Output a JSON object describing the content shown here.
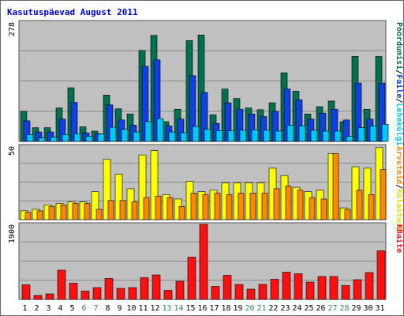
{
  "title": "Kasutuspäevad August 2011",
  "colors": {
    "hits": "#007050",
    "files": "#1040e0",
    "pages": "#00c8ff",
    "visits": "#ffff00",
    "sites": "#ff8800",
    "kbytes": "#ff1010",
    "panel_bg": "#c0c0c0",
    "grid": "#888888",
    "weekend_label": "#2e8b57",
    "weekday_label": "#000000",
    "title": "#0000cc"
  },
  "chart_data": [
    {
      "type": "bar",
      "name": "panel-top",
      "ymax_label": "278",
      "ylim": [
        0,
        278
      ],
      "right_labels": [
        {
          "text": "Pöördumisi",
          "color": "#007050"
        },
        {
          "text": "/",
          "color": "#000000"
        },
        {
          "text": "Faile",
          "color": "#1040e0"
        },
        {
          "text": "/",
          "color": "#000000"
        },
        {
          "text": "Lehekülgi",
          "color": "#00c8ff"
        }
      ],
      "categories": [
        "1",
        "2",
        "3",
        "4",
        "5",
        "6",
        "7",
        "8",
        "9",
        "10",
        "11",
        "12",
        "13",
        "14",
        "15",
        "16",
        "17",
        "18",
        "19",
        "20",
        "21",
        "22",
        "23",
        "24",
        "25",
        "26",
        "27",
        "28",
        "29",
        "30",
        "31"
      ],
      "series": [
        {
          "key": "hits",
          "values": [
            70,
            32,
            32,
            78,
            125,
            34,
            24,
            108,
            76,
            64,
            212,
            247,
            46,
            75,
            235,
            248,
            62,
            122,
            100,
            78,
            74,
            90,
            160,
            117,
            64,
            81,
            94,
            46,
            198,
            75,
            198
          ]
        },
        {
          "key": "files",
          "values": [
            48,
            22,
            22,
            52,
            91,
            20,
            18,
            85,
            50,
            38,
            175,
            190,
            36,
            52,
            153,
            114,
            42,
            90,
            75,
            64,
            58,
            70,
            122,
            97,
            52,
            66,
            75,
            50,
            136,
            52,
            136
          ]
        },
        {
          "key": "pages",
          "values": [
            16,
            8,
            10,
            16,
            18,
            12,
            17,
            33,
            28,
            22,
            46,
            53,
            22,
            20,
            35,
            28,
            25,
            25,
            26,
            27,
            26,
            24,
            38,
            36,
            26,
            24,
            24,
            12,
            32,
            36,
            40
          ]
        }
      ]
    },
    {
      "type": "bar",
      "name": "panel-middle",
      "ymax_label": "50",
      "ylim": [
        0,
        50
      ],
      "right_labels": [
        {
          "text": "Arvuteid",
          "color": "#ff8800"
        },
        {
          "text": "/",
          "color": "#000000"
        },
        {
          "text": "Külastusi",
          "color": "#dddd00"
        }
      ],
      "categories": [
        "1",
        "2",
        "3",
        "4",
        "5",
        "6",
        "7",
        "8",
        "9",
        "10",
        "11",
        "12",
        "13",
        "14",
        "15",
        "16",
        "17",
        "18",
        "19",
        "20",
        "21",
        "22",
        "23",
        "24",
        "25",
        "26",
        "27",
        "28",
        "29",
        "30",
        "31"
      ],
      "series": [
        {
          "key": "visits",
          "values": [
            6,
            7,
            10,
            11,
            12,
            12,
            19,
            41,
            31,
            21,
            44,
            47,
            17,
            14,
            26,
            19,
            20,
            25,
            25,
            25,
            25,
            35,
            30,
            22,
            19,
            20,
            45,
            8,
            36,
            35,
            49
          ]
        },
        {
          "key": "sites",
          "values": [
            5,
            6,
            9,
            10,
            11,
            11,
            7,
            13,
            13,
            12,
            15,
            16,
            15,
            9,
            18,
            17,
            18,
            17,
            18,
            18,
            18,
            21,
            23,
            20,
            15,
            14,
            45,
            7,
            20,
            17,
            34
          ]
        }
      ]
    },
    {
      "type": "bar",
      "name": "panel-bottom",
      "ymax_label": "1900",
      "ylim": [
        0,
        1900
      ],
      "right_labels": [
        {
          "text": "KBaite",
          "color": "#ff1010"
        }
      ],
      "categories": [
        "1",
        "2",
        "3",
        "4",
        "5",
        "6",
        "7",
        "8",
        "9",
        "10",
        "11",
        "12",
        "13",
        "14",
        "15",
        "16",
        "17",
        "18",
        "19",
        "20",
        "21",
        "22",
        "23",
        "24",
        "25",
        "26",
        "27",
        "28",
        "29",
        "30",
        "31"
      ],
      "series": [
        {
          "key": "kbytes",
          "values": [
            370,
            100,
            140,
            740,
            410,
            210,
            300,
            530,
            280,
            300,
            550,
            620,
            230,
            460,
            1070,
            1900,
            330,
            610,
            380,
            260,
            380,
            510,
            690,
            650,
            440,
            580,
            580,
            350,
            500,
            680,
            1230
          ]
        }
      ]
    }
  ],
  "x_labels": [
    {
      "text": "1",
      "weekend": false
    },
    {
      "text": "2",
      "weekend": false
    },
    {
      "text": "3",
      "weekend": false
    },
    {
      "text": "4",
      "weekend": false
    },
    {
      "text": "5",
      "weekend": false
    },
    {
      "text": "6",
      "weekend": true
    },
    {
      "text": "7",
      "weekend": true
    },
    {
      "text": "8",
      "weekend": false
    },
    {
      "text": "9",
      "weekend": false
    },
    {
      "text": "10",
      "weekend": false
    },
    {
      "text": "11",
      "weekend": false
    },
    {
      "text": "12",
      "weekend": false
    },
    {
      "text": "13",
      "weekend": true
    },
    {
      "text": "14",
      "weekend": true
    },
    {
      "text": "15",
      "weekend": false
    },
    {
      "text": "16",
      "weekend": false
    },
    {
      "text": "17",
      "weekend": false
    },
    {
      "text": "18",
      "weekend": false
    },
    {
      "text": "19",
      "weekend": false
    },
    {
      "text": "20",
      "weekend": true
    },
    {
      "text": "21",
      "weekend": true
    },
    {
      "text": "22",
      "weekend": false
    },
    {
      "text": "23",
      "weekend": false
    },
    {
      "text": "24",
      "weekend": false
    },
    {
      "text": "25",
      "weekend": false
    },
    {
      "text": "26",
      "weekend": false
    },
    {
      "text": "27",
      "weekend": true
    },
    {
      "text": "28",
      "weekend": true
    },
    {
      "text": "29",
      "weekend": false
    },
    {
      "text": "30",
      "weekend": false
    },
    {
      "text": "31",
      "weekend": false
    }
  ]
}
